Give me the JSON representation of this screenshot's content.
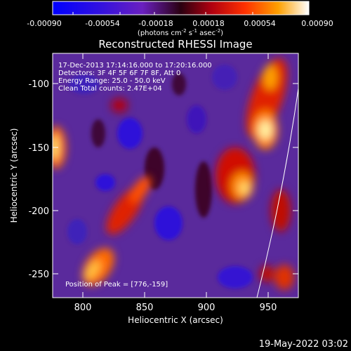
{
  "colorbar": {
    "ticks": [
      "-0.00090",
      "-0.00054",
      "-0.00018",
      "0.00018",
      "0.00054",
      "0.00090"
    ],
    "units_prefix": "(photons cm",
    "units_sup1": "-2",
    "units_mid": " s",
    "units_sup2": "-1",
    "units_mid2": " asec",
    "units_sup3": "-2",
    "units_suffix": ")"
  },
  "plot": {
    "title": "Reconstructed RHESSI Image",
    "xlabel": "Heliocentric X (arcsec)",
    "ylabel": "Heliocentric Y (arcsec)",
    "x_ticks": [
      "800",
      "850",
      "900",
      "950"
    ],
    "y_ticks": [
      "-100",
      "-150",
      "-200",
      "-250"
    ],
    "info_lines": [
      "17-Dec-2013 17:14:16.000 to 17:20:16.000",
      "Detectors: 3F 4F 5F 6F 7F 8F, Att 0",
      "Energy Range: 25.0 - 50.0 keV",
      "Clean    Total counts: 2.47E+04"
    ],
    "peak_label": "Position of Peak = [776,-159]"
  },
  "footer": {
    "timestamp": "19-May-2022 03:02"
  },
  "colors": {
    "background": "#000000",
    "text": "#ffffff",
    "map_base": "#5a2a9c"
  }
}
